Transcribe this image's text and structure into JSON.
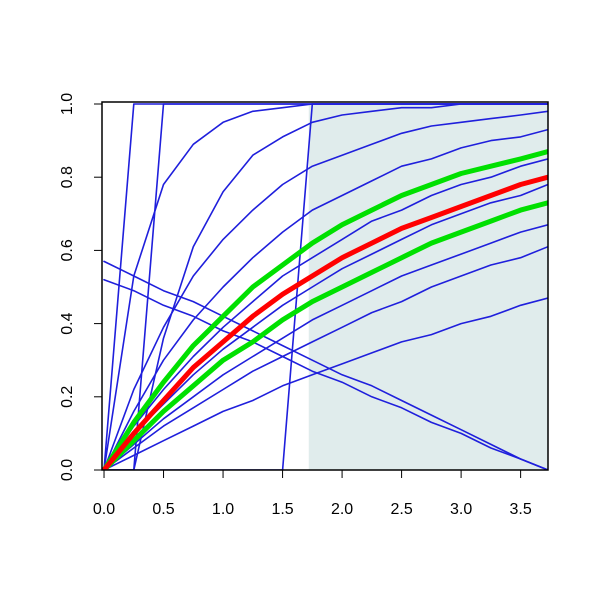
{
  "chart_data": {
    "type": "line",
    "x": [
      0,
      0.25,
      0.5,
      0.75,
      1,
      1.25,
      1.5,
      1.75,
      2,
      2.25,
      2.5,
      2.75,
      3,
      3.25,
      3.5,
      3.73
    ],
    "xlim": [
      -0.017,
      3.73
    ],
    "ylim": [
      0,
      1
    ],
    "xticks": [
      {
        "value": 0,
        "label": "0.0"
      },
      {
        "value": 0.5,
        "label": "0.5"
      },
      {
        "value": 1,
        "label": "1.0"
      },
      {
        "value": 1.5,
        "label": "1.5"
      },
      {
        "value": 2,
        "label": "2.0"
      },
      {
        "value": 2.5,
        "label": "2.5"
      },
      {
        "value": 3,
        "label": "3.0"
      },
      {
        "value": 3.5,
        "label": "3.5"
      }
    ],
    "yticks": [
      {
        "value": 0,
        "label": "0.0"
      },
      {
        "value": 0.2,
        "label": "0.2"
      },
      {
        "value": 0.4,
        "label": "0.4"
      },
      {
        "value": 0.6,
        "label": "0.6"
      },
      {
        "value": 0.8,
        "label": "0.8"
      },
      {
        "value": 1,
        "label": "1.0"
      }
    ],
    "shaded_region": {
      "x": [
        1.72,
        3.73
      ],
      "color": "#e0ecec"
    },
    "series": [
      {
        "color": "#1f1fdc",
        "width": 1.6,
        "values": [
          0,
          0.04,
          0.08,
          0.12,
          0.16,
          0.19,
          0.23,
          0.26,
          0.29,
          0.32,
          0.35,
          0.37,
          0.4,
          0.42,
          0.45,
          0.47
        ]
      },
      {
        "color": "#1f1fdc",
        "width": 1.6,
        "values": [
          0,
          0.06,
          0.12,
          0.17,
          0.22,
          0.27,
          0.31,
          0.35,
          0.39,
          0.43,
          0.46,
          0.5,
          0.53,
          0.56,
          0.58,
          0.61
        ]
      },
      {
        "color": "#1f1fdc",
        "width": 1.6,
        "values": [
          0,
          0.07,
          0.14,
          0.2,
          0.26,
          0.31,
          0.36,
          0.41,
          0.45,
          0.49,
          0.53,
          0.56,
          0.59,
          0.62,
          0.65,
          0.67
        ]
      },
      {
        "color": "#1f1fdc",
        "width": 1.6,
        "values": [
          0,
          0.1,
          0.18,
          0.26,
          0.33,
          0.39,
          0.45,
          0.5,
          0.55,
          0.59,
          0.63,
          0.67,
          0.7,
          0.73,
          0.75,
          0.78
        ]
      },
      {
        "color": "#1f1fdc",
        "width": 1.6,
        "values": [
          0,
          0.12,
          0.22,
          0.31,
          0.39,
          0.46,
          0.53,
          0.58,
          0.63,
          0.68,
          0.71,
          0.75,
          0.78,
          0.8,
          0.83,
          0.85
        ]
      },
      {
        "color": "#1f1fdc",
        "width": 1.6,
        "values": [
          0,
          0.16,
          0.3,
          0.41,
          0.5,
          0.58,
          0.65,
          0.71,
          0.75,
          0.79,
          0.83,
          0.85,
          0.88,
          0.9,
          0.91,
          0.93
        ]
      },
      {
        "color": "#1f1fdc",
        "width": 1.6,
        "values": [
          0,
          0.22,
          0.39,
          0.53,
          0.63,
          0.71,
          0.78,
          0.83,
          0.86,
          0.89,
          0.92,
          0.94,
          0.95,
          0.96,
          0.97,
          0.98
        ]
      },
      {
        "color": "#1f1fdc",
        "width": 1.6,
        "values": [
          0,
          0.53,
          0.78,
          0.89,
          0.95,
          0.98,
          0.99,
          1,
          1,
          1,
          1,
          1,
          1,
          1,
          1,
          1
        ]
      },
      {
        "color": "#1f1fdc",
        "width": 1.6,
        "values": [
          0,
          0,
          0.36,
          0.61,
          0.76,
          0.86,
          0.91,
          0.95,
          0.97,
          0.98,
          0.99,
          0.99,
          1,
          1,
          1,
          1
        ]
      },
      {
        "color": "#1f1fdc",
        "width": 1.6,
        "values": [
          0,
          0,
          0,
          0,
          0,
          0,
          0,
          1,
          1,
          1,
          1,
          1,
          1,
          1,
          1,
          1
        ]
      },
      {
        "color": "#1f1fdc",
        "width": 1.6,
        "values": [
          0,
          0,
          1,
          1,
          1,
          1,
          1,
          1,
          1,
          1,
          1,
          1,
          1,
          1,
          1,
          1
        ]
      },
      {
        "color": "#1f1fdc",
        "width": 1.6,
        "values": [
          0,
          1,
          1,
          1,
          1,
          1,
          1,
          1,
          1,
          1,
          1,
          1,
          1,
          1,
          1,
          1
        ]
      },
      {
        "color": "#1f1fdc",
        "width": 1.6,
        "values": [
          0.57,
          0.53,
          0.49,
          0.46,
          0.42,
          0.38,
          0.34,
          0.3,
          0.26,
          0.23,
          0.19,
          0.15,
          0.11,
          0.07,
          0.03,
          0
        ]
      },
      {
        "color": "#1f1fdc",
        "width": 1.6,
        "values": [
          0.52,
          0.49,
          0.45,
          0.42,
          0.38,
          0.35,
          0.31,
          0.27,
          0.24,
          0.2,
          0.17,
          0.13,
          0.1,
          0.06,
          0.03,
          0
        ]
      },
      {
        "color": "#00e000",
        "width": 5,
        "values": [
          0,
          0.08,
          0.16,
          0.23,
          0.3,
          0.35,
          0.41,
          0.46,
          0.5,
          0.54,
          0.58,
          0.62,
          0.65,
          0.68,
          0.71,
          0.73
        ]
      },
      {
        "color": "#00e000",
        "width": 5,
        "values": [
          0,
          0.13,
          0.24,
          0.34,
          0.42,
          0.5,
          0.56,
          0.62,
          0.67,
          0.71,
          0.75,
          0.78,
          0.81,
          0.83,
          0.85,
          0.87
        ]
      },
      {
        "color": "#ff0000",
        "width": 5,
        "values": [
          0,
          0.1,
          0.19,
          0.28,
          0.35,
          0.42,
          0.48,
          0.53,
          0.58,
          0.62,
          0.66,
          0.69,
          0.72,
          0.75,
          0.78,
          0.8
        ]
      }
    ]
  }
}
